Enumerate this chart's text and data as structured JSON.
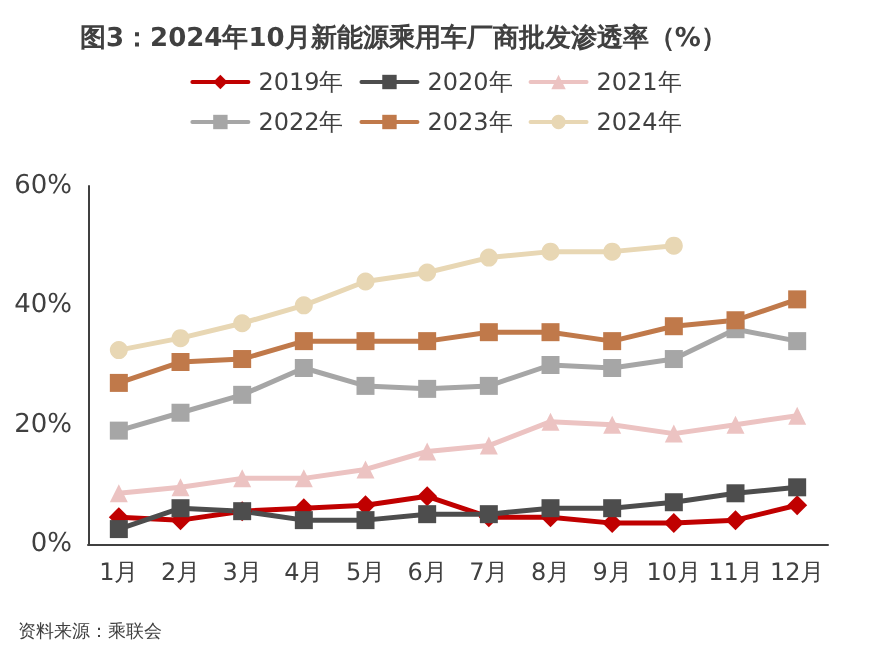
{
  "chart_data": {
    "type": "line",
    "title": "图3：2024年10月新能源乘用车厂商批发渗透率（%）",
    "categories": [
      "1月",
      "2月",
      "3月",
      "4月",
      "5月",
      "6月",
      "7月",
      "8月",
      "9月",
      "10月",
      "11月",
      "12月"
    ],
    "series": [
      {
        "name": "2019年",
        "color": "#c00000",
        "marker": "diamond",
        "values": [
          4.5,
          4,
          5.5,
          6,
          6.5,
          8,
          4.5,
          4.5,
          3.5,
          3.5,
          4,
          6.5
        ]
      },
      {
        "name": "2020年",
        "color": "#4d4d4d",
        "marker": "square",
        "values": [
          2.5,
          6,
          5.5,
          4,
          4,
          5,
          5,
          6,
          6,
          7,
          8.5,
          9.5
        ]
      },
      {
        "name": "2021年",
        "color": "#ecc3c2",
        "marker": "triangle",
        "values": [
          8.5,
          9.5,
          11,
          11,
          12.5,
          15.5,
          16.5,
          20.5,
          20,
          18.5,
          20,
          21.5
        ]
      },
      {
        "name": "2022年",
        "color": "#a6a6a6",
        "marker": "square",
        "values": [
          19,
          22,
          25,
          29.5,
          26.5,
          26,
          26.5,
          30,
          29.5,
          31,
          36,
          34
        ]
      },
      {
        "name": "2023年",
        "color": "#c0794a",
        "marker": "square",
        "values": [
          27,
          30.5,
          31,
          34,
          34,
          34,
          35.5,
          35.5,
          34,
          36.5,
          37.5,
          41
        ]
      },
      {
        "name": "2024年",
        "color": "#e8d7b4",
        "marker": "circle",
        "values": [
          32.5,
          34.5,
          37,
          40,
          44,
          45.5,
          48,
          49,
          49,
          50,
          null,
          null
        ]
      }
    ],
    "ylim": [
      0,
      60
    ],
    "yticks": [
      {
        "value": 0,
        "label": "0%"
      },
      {
        "value": 20,
        "label": "20%"
      },
      {
        "value": 40,
        "label": "40%"
      },
      {
        "value": 60,
        "label": "60%"
      }
    ],
    "grid": false,
    "legend": "top",
    "line_style": "solid",
    "annotations": [
      "资料来源：乘联会"
    ]
  }
}
